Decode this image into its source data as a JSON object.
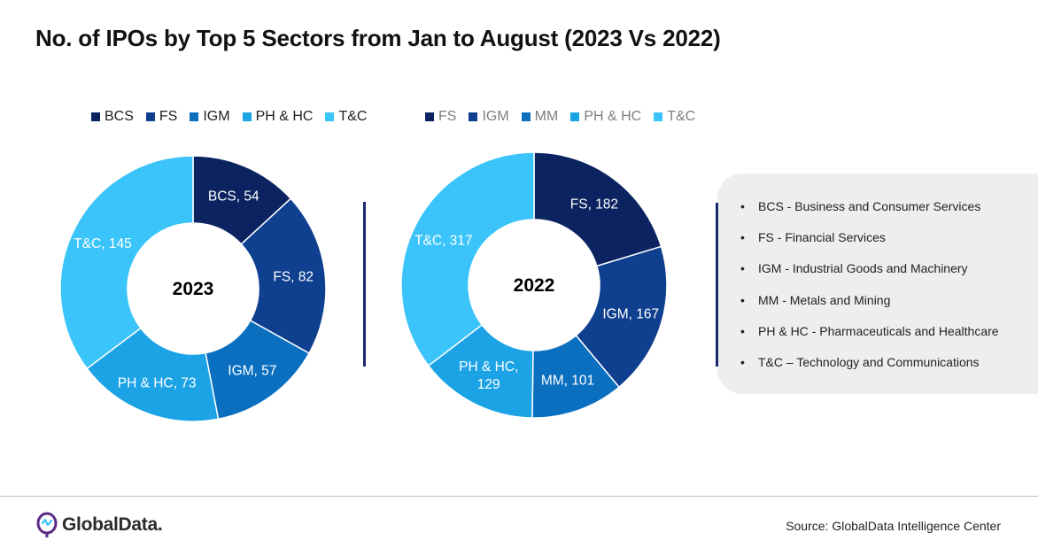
{
  "title": "No. of IPOs by Top 5 Sectors from Jan to August (2023 Vs 2022)",
  "colors": {
    "BCS": "#0b2461",
    "FS": "#0f3f8f",
    "IGM": "#0b6fc0",
    "MM": "#0d7fcf",
    "PH & HC": "#1ba3e6",
    "T&C": "#3bc4fa",
    "divider": "#1a2b6d",
    "panel": "#eeeeee"
  },
  "chart_data": [
    {
      "type": "pie",
      "center_label": "2023",
      "legend": [
        "BCS",
        "FS",
        "IGM",
        "PH & HC",
        "T&C"
      ],
      "categories": [
        "BCS",
        "FS",
        "IGM",
        "PH & HC",
        "T&C"
      ],
      "values": [
        54,
        82,
        57,
        73,
        145
      ],
      "slice_labels": [
        [
          "BCS, 54"
        ],
        [
          "FS, 82"
        ],
        [
          "IGM, 57"
        ],
        [
          "PH & HC, 73"
        ],
        [
          "T&C, 145"
        ]
      ],
      "slice_colors": [
        "#0b2461",
        "#0f3f8f",
        "#0b6fc0",
        "#1ba3e6",
        "#3bc4fa"
      ],
      "legend_placement": "top"
    },
    {
      "type": "pie",
      "center_label": "2022",
      "legend": [
        "FS",
        "IGM",
        "MM",
        "PH & HC",
        "T&C"
      ],
      "categories": [
        "FS",
        "IGM",
        "MM",
        "PH & HC",
        "T&C"
      ],
      "values": [
        182,
        167,
        101,
        129,
        317
      ],
      "slice_labels": [
        [
          "FS, 182"
        ],
        [
          "IGM, 167"
        ],
        [
          "MM, 101"
        ],
        [
          "PH & HC,",
          "129"
        ],
        [
          "T&C, 317"
        ]
      ],
      "slice_colors": [
        "#0b2461",
        "#0f3f8f",
        "#0b6fc0",
        "#1ba3e6",
        "#3bc4fa"
      ],
      "legend_placement": "top"
    }
  ],
  "definitions": [
    "BCS - Business and Consumer Services",
    "FS - Financial Services",
    "IGM - Industrial Goods and Machinery",
    "MM - Metals and Mining",
    "PH & HC - Pharmaceuticals and Healthcare",
    "T&C – Technology and Communications"
  ],
  "footer": {
    "logo_text": "GlobalData.",
    "source": "Source:  GlobalData Intelligence Center"
  }
}
